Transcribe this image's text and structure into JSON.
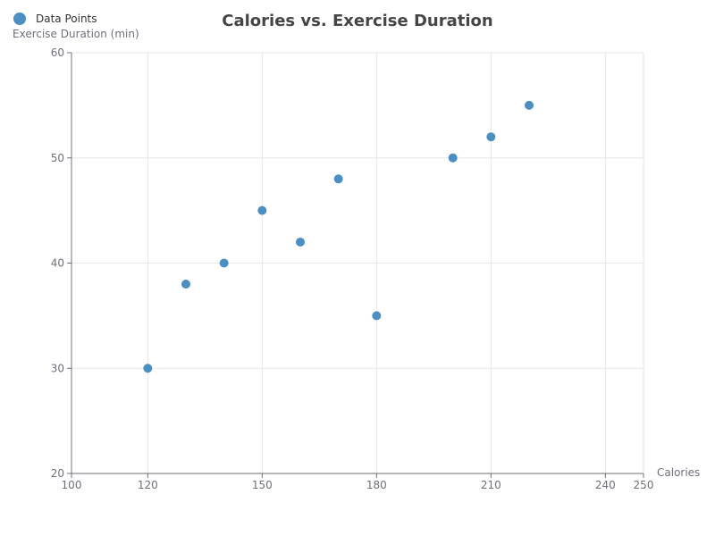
{
  "chart_data": {
    "type": "scatter",
    "title": "Calories vs. Exercise Duration",
    "xlabel": "Calories",
    "ylabel": "Exercise Duration (min)",
    "xlim": [
      100,
      250
    ],
    "ylim": [
      20,
      60
    ],
    "x_ticks": [
      100,
      120,
      150,
      180,
      210,
      240,
      250
    ],
    "y_ticks": [
      20,
      30,
      40,
      50,
      60
    ],
    "grid": true,
    "legend_position": "top-left",
    "series": [
      {
        "name": "Data Points",
        "color": "#4c8fc2",
        "points": [
          {
            "x": 120,
            "y": 30
          },
          {
            "x": 130,
            "y": 38
          },
          {
            "x": 140,
            "y": 40
          },
          {
            "x": 150,
            "y": 45
          },
          {
            "x": 160,
            "y": 42
          },
          {
            "x": 170,
            "y": 48
          },
          {
            "x": 180,
            "y": 35
          },
          {
            "x": 200,
            "y": 50
          },
          {
            "x": 210,
            "y": 52
          },
          {
            "x": 220,
            "y": 55
          }
        ]
      }
    ]
  }
}
